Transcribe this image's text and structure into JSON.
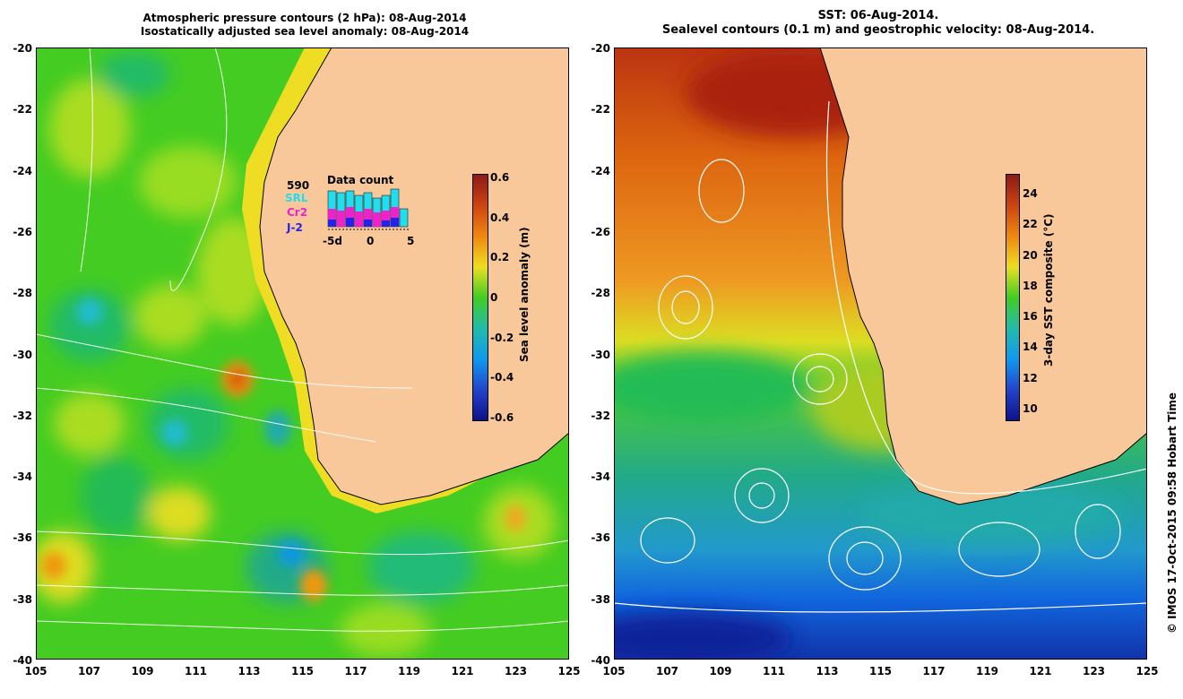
{
  "left_panel": {
    "title_line1": "Atmospheric pressure contours (2 hPa): 08-Aug-2014",
    "title_line2": "Isostatically adjusted sea level anomaly: 08-Aug-2014",
    "colorbar": {
      "title": "Sea level anomaly (m)",
      "ticks": [
        "0.6",
        "0.4",
        "0.2",
        "0",
        "-0.2",
        "-0.4",
        "-0.6"
      ]
    },
    "data_count": {
      "title": "Data count",
      "total": "590",
      "sources": [
        {
          "name": "SRL",
          "color": "#22ddee"
        },
        {
          "name": "Cr2",
          "color": "#ee22cc"
        },
        {
          "name": "J-2",
          "color": "#2222ee"
        }
      ],
      "axis_labels": [
        "-5d",
        "0",
        "5"
      ]
    }
  },
  "right_panel": {
    "title_line1": "SST: 06-Aug-2014.",
    "title_line2": "Sealevel contours (0.1 m) and geostrophic velocity: 08-Aug-2014.",
    "colorbar": {
      "title": "3-day SST composite (°C)",
      "ticks": [
        "24",
        "22",
        "20",
        "18",
        "16",
        "14",
        "12",
        "10"
      ]
    }
  },
  "axes": {
    "lat_ticks": [
      "-20",
      "-22",
      "-24",
      "-26",
      "-28",
      "-30",
      "-32",
      "-34",
      "-36",
      "-38",
      "-40"
    ],
    "lon_ticks": [
      "105",
      "107",
      "109",
      "111",
      "113",
      "115",
      "117",
      "119",
      "121",
      "123",
      "125"
    ]
  },
  "credit": "© IMOS 17-Oct-2015 09:58 Hobart Time",
  "colors": {
    "land": "#f9c89a",
    "ssh_background": "#44cc22",
    "sst_warm": "#dd6610",
    "sst_cool": "#1166dd",
    "contour": "#ffffff"
  }
}
